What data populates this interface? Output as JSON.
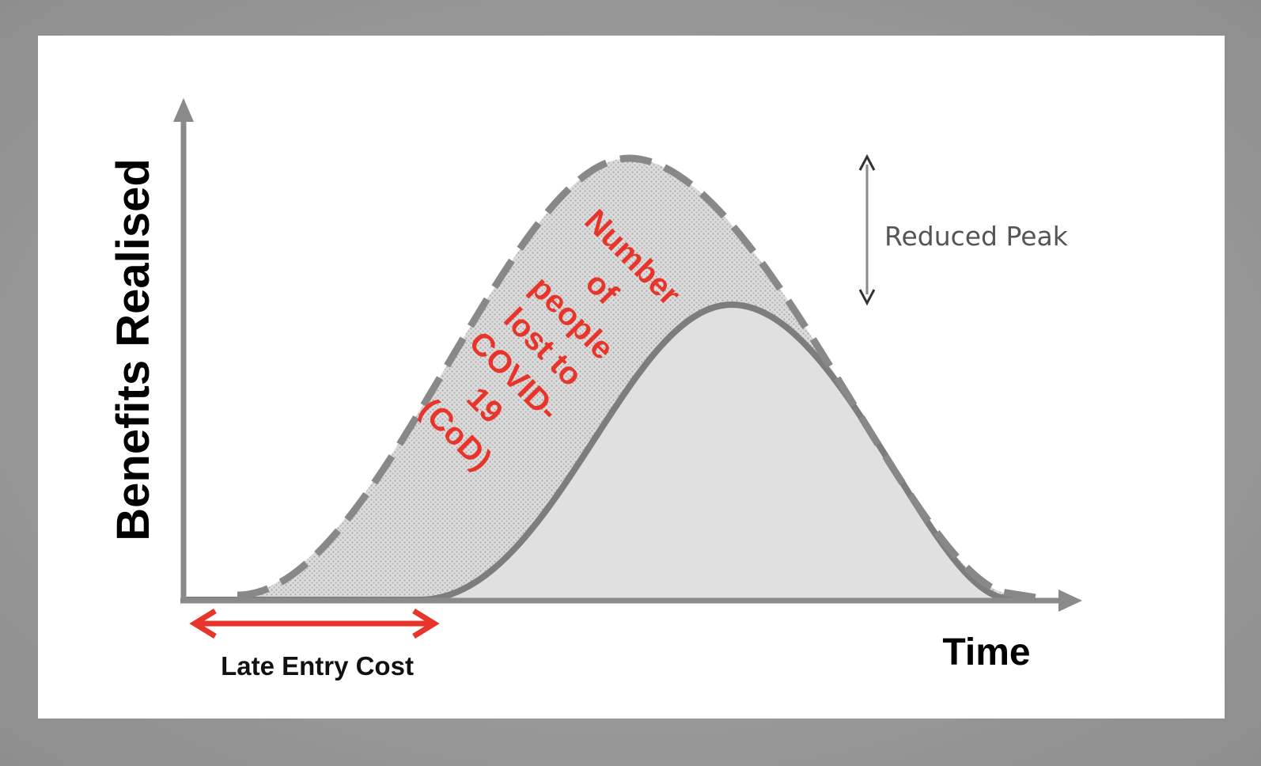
{
  "diagram": {
    "y_axis_label": "Benefits Realised",
    "x_axis_label": "Time",
    "late_entry_label": "Late Entry Cost",
    "reduced_peak_label": "Reduced Peak",
    "loss_annotation_lines": [
      "Number",
      "of",
      "people",
      "lost to",
      "COVID-",
      "19",
      "(CoD)"
    ]
  },
  "colors": {
    "frame": "#9a9a9a",
    "panel": "#ffffff",
    "axis": "#8a8a8a",
    "curve": "#7a7a7a",
    "fill_dotted": "#d6d6d6",
    "fill_solid": "#e0e0e0",
    "annotation_red": "#e8352b",
    "arrow_red": "#e8352b"
  }
}
